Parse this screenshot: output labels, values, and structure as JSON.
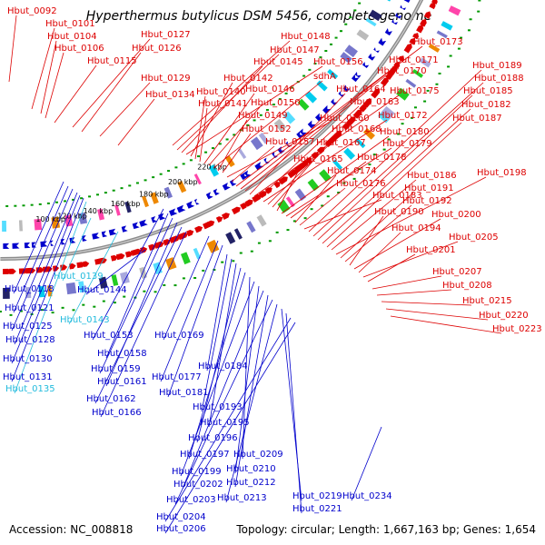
{
  "title": "Hyperthermus butylicus DSM 5456, complete genome",
  "accession": "Accession: NC_008818",
  "summary": "Topology: circular; Length: 1,667,163 bp; Genes: 1,654",
  "colors": {
    "forward": "#dd0000",
    "reverse": "#0000cc",
    "highlight": "#22bbdd",
    "backbone": "#8c8c8c",
    "rna": "#009900"
  },
  "tick_labels": [
    "100 kbp",
    "120 kbp",
    "140 kbp",
    "160 kbp",
    "180 kbp",
    "200 kbp",
    "220 kbp"
  ],
  "forward_genes": [
    "Hbut_0092",
    "Hbut_0101",
    "Hbut_0104",
    "Hbut_0106",
    "Hbut_0127",
    "Hbut_0126",
    "Hbut_0115",
    "Hbut_0129",
    "Hbut_0134",
    "Hbut_0148",
    "Hbut_0147",
    "Hbut_0145",
    "Hbut_0156",
    "Hbut_0142",
    "Hbut_0140",
    "Hbut_0141",
    "Hbut_0146",
    "Hbut_0150",
    "sdhA",
    "Hbut_0149",
    "Hbut_0152",
    "Hbut_0160",
    "Hbut_0157",
    "Hbut_0173",
    "Hbut_0171",
    "Hbut_0170",
    "Hbut_0164",
    "Hbut_0175",
    "Hbut_0163",
    "Hbut_0172",
    "Hbut_0168",
    "Hbut_0167",
    "Hbut_0165",
    "Hbut_0180",
    "Hbut_0179",
    "Hbut_0178",
    "Hbut_0174",
    "Hbut_0176",
    "Hbut_0183",
    "Hbut_0189",
    "Hbut_0188",
    "Hbut_0185",
    "Hbut_0182",
    "Hbut_0187",
    "Hbut_0186",
    "Hbut_0198",
    "Hbut_0191",
    "Hbut_0192",
    "Hbut_0190",
    "Hbut_0200",
    "Hbut_0194",
    "Hbut_0205",
    "Hbut_0201",
    "Hbut_0207",
    "Hbut_0208",
    "Hbut_0215",
    "Hbut_0220",
    "Hbut_0223"
  ],
  "reverse_genes": [
    "Hbut_0118",
    "Hbut_0121",
    "Hbut_0125",
    "Hbut_0128",
    "Hbut_0130",
    "Hbut_0131",
    "Hbut_0153",
    "Hbut_0158",
    "Hbut_0159",
    "Hbut_0161",
    "Hbut_0162",
    "Hbut_0166",
    "Hbut_0169",
    "Hbut_0184",
    "Hbut_0177",
    "Hbut_0181",
    "Hbut_0193",
    "Hbut_0195",
    "Hbut_0196",
    "Hbut_0197",
    "Hbut_0209",
    "Hbut_0199",
    "Hbut_0210",
    "Hbut_0202",
    "Hbut_0212",
    "Hbut_0203",
    "Hbut_0213",
    "Hbut_0219",
    "Hbut_0221",
    "Hbut_0204",
    "Hbut_0206",
    "Hbut_0234",
    "Hbut_0144"
  ],
  "highlight_genes": [
    "Hbut_0139",
    "Hbut_0143",
    "Hbut_0135"
  ]
}
